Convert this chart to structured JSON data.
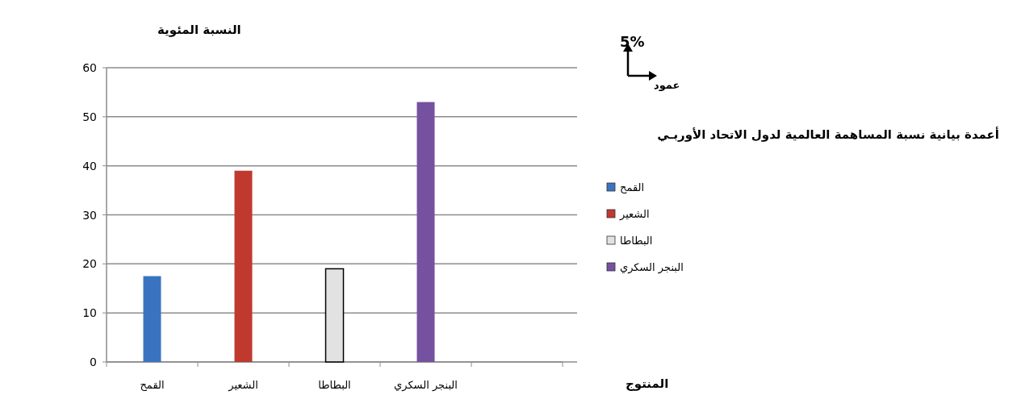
{
  "chart_data": {
    "type": "bar",
    "title": "أعمدة بيانية نسبة المساهمة العالمية لدول الاتحاد الأوربـي",
    "xlabel": "المنتوج",
    "ylabel": "النسبة المئوية",
    "categories": [
      "القمح",
      "الشعير",
      "البطاطا",
      "البنجر السكري",
      null
    ],
    "series": [
      {
        "name": "القمح",
        "color": "#3a74c0",
        "values": [
          17.5,
          null,
          null,
          null,
          null
        ]
      },
      {
        "name": "الشعير",
        "color": "#c0392f",
        "values": [
          null,
          39,
          null,
          null,
          null
        ]
      },
      {
        "name": "البطاطا",
        "color": "#e2e2e2",
        "values": [
          null,
          null,
          19,
          null,
          null
        ]
      },
      {
        "name": "البنجر السكري",
        "color": "#7551a0",
        "values": [
          null,
          null,
          null,
          53,
          null
        ]
      }
    ],
    "ylim": [
      0,
      60
    ],
    "yticks": [
      0,
      10,
      20,
      30,
      40,
      50,
      60
    ],
    "grid": "y",
    "legend": "right",
    "annotations": [
      "5%",
      "عمود"
    ]
  }
}
